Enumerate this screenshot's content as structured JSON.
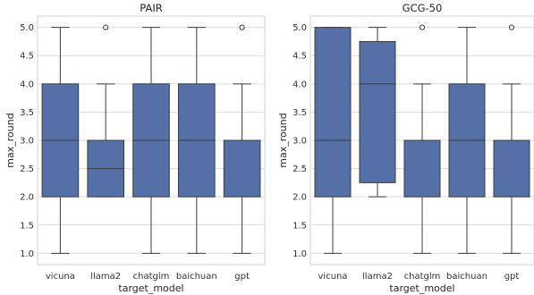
{
  "chart_data": [
    {
      "type": "box",
      "title": "PAIR",
      "xlabel": "target_model",
      "ylabel": "max_round",
      "ylim": [
        0.8,
        5.2
      ],
      "yticks": [
        1.0,
        1.5,
        2.0,
        2.5,
        3.0,
        3.5,
        4.0,
        4.5,
        5.0
      ],
      "grid": true,
      "categories": [
        "vicuna",
        "llama2",
        "chatglm",
        "baichuan",
        "gpt"
      ],
      "boxes": [
        {
          "category": "vicuna",
          "whislo": 1,
          "q1": 2,
          "med": 3,
          "q3": 4,
          "whishi": 5,
          "fliers": []
        },
        {
          "category": "llama2",
          "whislo": 2,
          "q1": 2,
          "med": 2.5,
          "q3": 3,
          "whishi": 4,
          "fliers": [
            5
          ]
        },
        {
          "category": "chatglm",
          "whislo": 1,
          "q1": 2,
          "med": 3,
          "q3": 4,
          "whishi": 5,
          "fliers": []
        },
        {
          "category": "baichuan",
          "whislo": 1,
          "q1": 2,
          "med": 3,
          "q3": 4,
          "whishi": 5,
          "fliers": []
        },
        {
          "category": "gpt",
          "whislo": 1,
          "q1": 2,
          "med": 3,
          "q3": 3,
          "whishi": 4,
          "fliers": [
            5
          ]
        }
      ],
      "box_color": "#5470a6"
    },
    {
      "type": "box",
      "title": "GCG-50",
      "xlabel": "target_model",
      "ylabel": "max_round",
      "ylim": [
        0.8,
        5.2
      ],
      "yticks": [
        1.0,
        1.5,
        2.0,
        2.5,
        3.0,
        3.5,
        4.0,
        4.5,
        5.0
      ],
      "grid": true,
      "categories": [
        "vicuna",
        "llama2",
        "chatglm",
        "baichuan",
        "gpt"
      ],
      "boxes": [
        {
          "category": "vicuna",
          "whislo": 1,
          "q1": 2,
          "med": 3,
          "q3": 5,
          "whishi": 5,
          "fliers": []
        },
        {
          "category": "llama2",
          "whislo": 2,
          "q1": 2.25,
          "med": 4,
          "q3": 4.75,
          "whishi": 5,
          "fliers": []
        },
        {
          "category": "chatglm",
          "whislo": 1,
          "q1": 2,
          "med": 3,
          "q3": 3,
          "whishi": 4,
          "fliers": [
            5
          ]
        },
        {
          "category": "baichuan",
          "whislo": 1,
          "q1": 2,
          "med": 3,
          "q3": 4,
          "whishi": 5,
          "fliers": []
        },
        {
          "category": "gpt",
          "whislo": 1,
          "q1": 2,
          "med": 3,
          "q3": 3,
          "whishi": 4,
          "fliers": [
            5
          ]
        }
      ],
      "box_color": "#5470a6"
    }
  ]
}
